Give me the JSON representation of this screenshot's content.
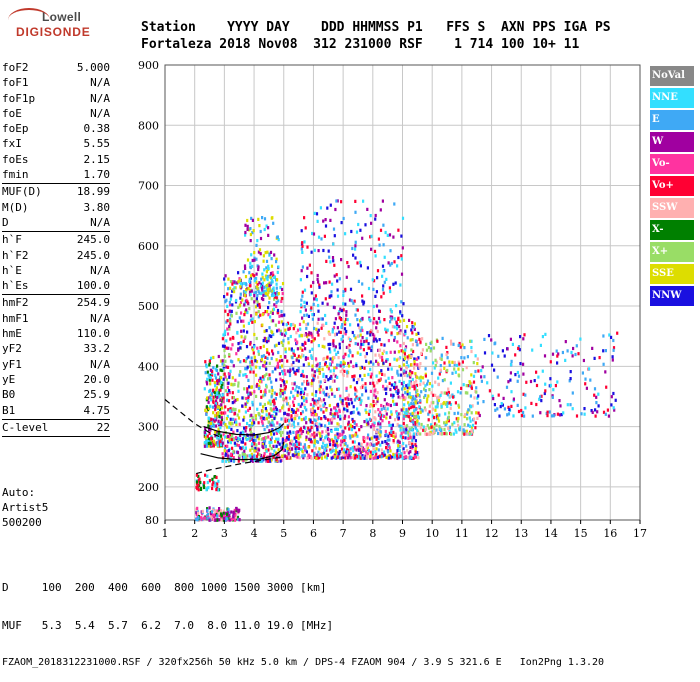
{
  "logo": {
    "line1": "Lowell",
    "line2": "DIGISONDE"
  },
  "header": {
    "line1": "Station    YYYY DAY    DDD HHMMSS P1   FFS S  AXN PPS IGA PS",
    "line2": "Fortaleza 2018 Nov08  312 231000 RSF    1 714 100 10+ 11"
  },
  "params": [
    {
      "k": "foF2",
      "v": "5.000"
    },
    {
      "k": "foF1",
      "v": "N/A"
    },
    {
      "k": "foF1p",
      "v": "N/A"
    },
    {
      "k": "foE",
      "v": "N/A"
    },
    {
      "k": "foEp",
      "v": "0.38"
    },
    {
      "k": "fxI",
      "v": "5.55"
    },
    {
      "k": "foEs",
      "v": "2.15"
    },
    {
      "k": "fmin",
      "v": "1.70",
      "sep": true
    },
    {
      "k": "MUF(D)",
      "v": "18.99"
    },
    {
      "k": "M(D)",
      "v": "3.80"
    },
    {
      "k": "D",
      "v": "N/A",
      "sep": true
    },
    {
      "k": "h`F",
      "v": "245.0"
    },
    {
      "k": "h`F2",
      "v": "245.0"
    },
    {
      "k": "h`E",
      "v": "N/A"
    },
    {
      "k": "h`Es",
      "v": "100.0",
      "sep": true
    },
    {
      "k": "hmF2",
      "v": "254.9"
    },
    {
      "k": "hmF1",
      "v": "N/A"
    },
    {
      "k": "hmE",
      "v": "110.0"
    },
    {
      "k": "yF2",
      "v": "33.2"
    },
    {
      "k": "yF1",
      "v": "N/A"
    },
    {
      "k": "yE",
      "v": "20.0"
    },
    {
      "k": "B0",
      "v": "25.9"
    },
    {
      "k": "B1",
      "v": "4.75",
      "sep": true
    },
    {
      "k": "C-level",
      "v": "22",
      "sep": true
    }
  ],
  "auto": {
    "l1": "Auto:",
    "l2": "Artist5",
    "l3": "500200"
  },
  "footer": {
    "d_row": "D     100  200  400  600  800 1000 1500 3000 [km]",
    "muf_row": "MUF   5.3  5.4  5.7  6.2  7.0  8.0 11.0 19.0 [MHz]",
    "info": "FZAOM_2018312231000.RSF / 320fx256h 50 kHz 5.0 km / DPS-4 FZAOM 904 / 3.9 S 321.6 E   Ion2Png 1.3.20"
  },
  "legend": [
    {
      "label": "NoVal",
      "color": "#888888"
    },
    {
      "label": "NNE",
      "color": "#33dfff"
    },
    {
      "label": "E",
      "color": "#3fa9f5"
    },
    {
      "label": "W",
      "color": "#a000a0"
    },
    {
      "label": "Vo-",
      "color": "#ff33a0"
    },
    {
      "label": "Vo+",
      "color": "#ff0033"
    },
    {
      "label": "SSW",
      "color": "#ffb0b0"
    },
    {
      "label": "X-",
      "color": "#008000"
    },
    {
      "label": "X+",
      "color": "#99dd66"
    },
    {
      "label": "SSE",
      "color": "#dddd00"
    },
    {
      "label": "NNW",
      "color": "#1a10e0"
    }
  ],
  "chart_data": {
    "type": "scatter",
    "xlim": [
      1,
      17
    ],
    "ylim": [
      80,
      900
    ],
    "x_ticks": [
      1,
      2,
      3,
      4,
      5,
      6,
      7,
      8,
      9,
      10,
      11,
      12,
      13,
      14,
      15,
      16,
      17
    ],
    "y_ticks": [
      80,
      200,
      300,
      400,
      500,
      600,
      700,
      800,
      900
    ],
    "grid": true,
    "legend_position": "right",
    "profile_curve": [
      [
        2.05,
        222
      ],
      [
        2.5,
        228
      ],
      [
        3.0,
        233
      ],
      [
        3.5,
        238
      ],
      [
        4.0,
        242
      ],
      [
        4.5,
        246
      ],
      [
        5.0,
        250
      ]
    ],
    "trace_lower": [
      [
        2.2,
        255
      ],
      [
        2.8,
        248
      ],
      [
        3.5,
        245
      ],
      [
        4.2,
        246
      ],
      [
        4.7,
        252
      ],
      [
        4.95,
        262
      ],
      [
        5.0,
        275
      ]
    ],
    "trace_upper": [
      [
        2.3,
        300
      ],
      [
        2.8,
        292
      ],
      [
        3.4,
        287
      ],
      [
        4.0,
        286
      ],
      [
        4.5,
        290
      ],
      [
        4.85,
        298
      ],
      [
        5.0,
        305
      ]
    ],
    "extrapolation": [
      [
        1.0,
        345
      ],
      [
        1.5,
        325
      ],
      [
        2.0,
        305
      ],
      [
        2.5,
        290
      ],
      [
        2.9,
        282
      ]
    ],
    "echo_clusters": [
      {
        "x": [
          2.3,
          2.9
        ],
        "y": [
          270,
          420
        ],
        "n": 260,
        "colors": [
          "E",
          "NNE",
          "W",
          "Vo+",
          "X-",
          "SSE"
        ]
      },
      {
        "x": [
          2.9,
          5.0
        ],
        "y": [
          245,
          560
        ],
        "n": 900,
        "colors": [
          "E",
          "NNE",
          "Vo+",
          "Vo-",
          "SSE",
          "W",
          "NNW",
          "X+"
        ]
      },
      {
        "x": [
          3.6,
          4.8
        ],
        "y": [
          520,
          650
        ],
        "n": 150,
        "colors": [
          "SSE",
          "W",
          "NNE",
          "E"
        ]
      },
      {
        "x": [
          5.0,
          9.5
        ],
        "y": [
          250,
          480
        ],
        "n": 1500,
        "colors": [
          "E",
          "NNE",
          "Vo+",
          "Vo-",
          "SSE",
          "W",
          "NNW",
          "SSW"
        ]
      },
      {
        "x": [
          5.5,
          9.0
        ],
        "y": [
          480,
          680
        ],
        "n": 260,
        "colors": [
          "NNE",
          "E",
          "W",
          "Vo+",
          "NNW"
        ]
      },
      {
        "x": [
          9.0,
          11.5
        ],
        "y": [
          290,
          450
        ],
        "n": 420,
        "colors": [
          "SSE",
          "NNE",
          "E",
          "Vo+",
          "SSW",
          "X+"
        ]
      },
      {
        "x": [
          11.5,
          16.2
        ],
        "y": [
          320,
          460
        ],
        "n": 200,
        "colors": [
          "NNE",
          "E",
          "NNW",
          "W",
          "Vo+"
        ]
      },
      {
        "x": [
          2.0,
          3.5
        ],
        "y": [
          85,
          130
        ],
        "n": 160,
        "colors": [
          "W",
          "Vo-",
          "X-",
          "E",
          "SSW"
        ]
      },
      {
        "x": [
          2.0,
          2.8
        ],
        "y": [
          195,
          225
        ],
        "n": 50,
        "colors": [
          "NNE",
          "X-",
          "Vo+"
        ]
      }
    ]
  }
}
